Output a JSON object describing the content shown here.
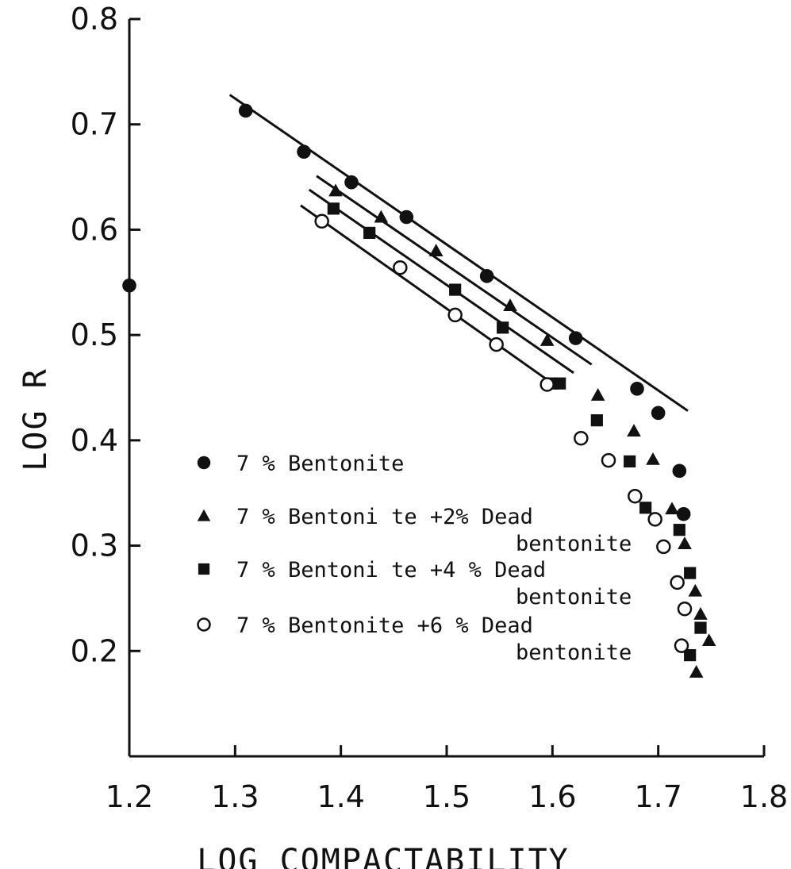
{
  "chart_data": {
    "type": "scatter",
    "xlabel": "LOG COMPACTABILITY",
    "ylabel": "LOG R",
    "xlim": [
      1.2,
      1.8
    ],
    "ylim": [
      0.1,
      0.8
    ],
    "xticks": [
      "1.2",
      "1.3",
      "1.4",
      "1.5",
      "1.6",
      "1.7",
      "1.8"
    ],
    "yticks": [
      "0.2",
      "0.3",
      "0.4",
      "0.5",
      "0.6",
      "0.7",
      "0.8"
    ],
    "grid": false,
    "legend_position": "lower-left",
    "series": [
      {
        "name": "7 % Bentonite",
        "marker": "filled-circle",
        "x": [
          1.2,
          1.31,
          1.365,
          1.41,
          1.462,
          1.538,
          1.622,
          1.68,
          1.7,
          1.72,
          1.724
        ],
        "y": [
          0.547,
          0.713,
          0.674,
          0.645,
          0.612,
          0.556,
          0.497,
          0.449,
          0.426,
          0.371,
          0.33
        ],
        "fit_line": {
          "x": [
            1.295,
            1.728
          ],
          "y": [
            0.728,
            0.428
          ]
        }
      },
      {
        "name": "7 % Bentonite +2% Dead bentonite",
        "marker": "filled-triangle",
        "x": [
          1.395,
          1.438,
          1.49,
          1.56,
          1.595,
          1.643,
          1.677,
          1.695,
          1.713,
          1.725,
          1.735,
          1.74,
          1.748,
          1.736
        ],
        "y": [
          0.637,
          0.612,
          0.58,
          0.528,
          0.495,
          0.443,
          0.409,
          0.382,
          0.335,
          0.302,
          0.257,
          0.235,
          0.21,
          0.18
        ],
        "fit_line": {
          "x": [
            1.377,
            1.637
          ],
          "y": [
            0.651,
            0.472
          ]
        }
      },
      {
        "name": "7 % Bentonite +4% Dead bentonite",
        "marker": "filled-square",
        "x": [
          1.393,
          1.427,
          1.508,
          1.553,
          1.6,
          1.607,
          1.642,
          1.673,
          1.688,
          1.72,
          1.73,
          1.74,
          1.73
        ],
        "y": [
          0.62,
          0.597,
          0.543,
          0.507,
          0.454,
          0.454,
          0.419,
          0.38,
          0.336,
          0.315,
          0.274,
          0.222,
          0.196
        ],
        "fit_line": {
          "x": [
            1.37,
            1.62
          ],
          "y": [
            0.638,
            0.464
          ]
        }
      },
      {
        "name": "7 % Bentonite +6% Dead bentonite",
        "marker": "open-circle",
        "x": [
          1.382,
          1.456,
          1.508,
          1.547,
          1.595,
          1.627,
          1.653,
          1.678,
          1.697,
          1.705,
          1.718,
          1.722,
          1.725
        ],
        "y": [
          0.608,
          0.564,
          0.519,
          0.491,
          0.453,
          0.402,
          0.381,
          0.347,
          0.325,
          0.299,
          0.265,
          0.205,
          0.24
        ],
        "fit_line": {
          "x": [
            1.362,
            1.6
          ],
          "y": [
            0.623,
            0.454
          ]
        }
      }
    ],
    "legend": [
      {
        "marker": "filled-circle",
        "lines": [
          "7 %  Bentonite"
        ]
      },
      {
        "marker": "filled-triangle",
        "lines": [
          "7 %  Bentoni te +2% Dead",
          "bentonite"
        ]
      },
      {
        "marker": "filled-square",
        "lines": [
          "7 %   Bentoni te  +4 % Dead",
          "bentonite"
        ]
      },
      {
        "marker": "open-circle",
        "lines": [
          "7 %   Bentonite  +6 % Dead",
          "bentonite"
        ]
      }
    ]
  }
}
